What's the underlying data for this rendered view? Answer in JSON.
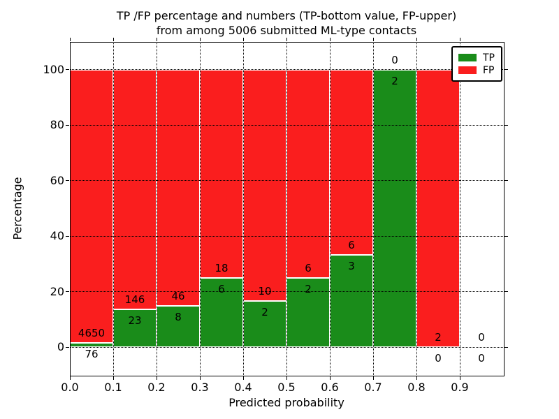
{
  "chart_data": {
    "type": "bar",
    "stacked": true,
    "title_line1": "TP /FP percentage and numbers (TP-bottom value, FP-upper)",
    "title_line2": "from among 5006 submitted ML-type contacts",
    "xlabel": "Predicted probability",
    "ylabel": "Percentage",
    "xlim": [
      0.0,
      1.0
    ],
    "ylim": [
      -10,
      110
    ],
    "xticks": [
      "0.0",
      "0.1",
      "0.2",
      "0.3",
      "0.4",
      "0.5",
      "0.6",
      "0.7",
      "0.8",
      "0.9"
    ],
    "yticks": [
      0,
      20,
      40,
      60,
      80,
      100
    ],
    "grid": "dotted",
    "colors": {
      "tp": "#1a8c1a",
      "fp": "#fa1e1e"
    },
    "legend": {
      "position": "upper-right",
      "entries": [
        {
          "label": "TP",
          "color": "#1a8c1a"
        },
        {
          "label": "FP",
          "color": "#fa1e1e"
        }
      ]
    },
    "bins": [
      {
        "range": [
          0.0,
          0.1
        ],
        "tp": 76,
        "fp": 4650,
        "tp_pct": 1.61,
        "fp_pct": 98.39,
        "show_bar": true
      },
      {
        "range": [
          0.1,
          0.2
        ],
        "tp": 23,
        "fp": 146,
        "tp_pct": 13.61,
        "fp_pct": 86.39,
        "show_bar": true
      },
      {
        "range": [
          0.2,
          0.3
        ],
        "tp": 8,
        "fp": 46,
        "tp_pct": 14.81,
        "fp_pct": 85.19,
        "show_bar": true
      },
      {
        "range": [
          0.3,
          0.4
        ],
        "tp": 6,
        "fp": 18,
        "tp_pct": 25.0,
        "fp_pct": 75.0,
        "show_bar": true
      },
      {
        "range": [
          0.4,
          0.5
        ],
        "tp": 2,
        "fp": 10,
        "tp_pct": 16.67,
        "fp_pct": 83.33,
        "show_bar": true
      },
      {
        "range": [
          0.5,
          0.6
        ],
        "tp": 2,
        "fp": 6,
        "tp_pct": 25.0,
        "fp_pct": 75.0,
        "show_bar": true
      },
      {
        "range": [
          0.6,
          0.7
        ],
        "tp": 3,
        "fp": 6,
        "tp_pct": 33.33,
        "fp_pct": 66.67,
        "show_bar": true
      },
      {
        "range": [
          0.7,
          0.8
        ],
        "tp": 2,
        "fp": 0,
        "tp_pct": 100.0,
        "fp_pct": 0.0,
        "show_bar": true
      },
      {
        "range": [
          0.8,
          0.9
        ],
        "tp": 0,
        "fp": 2,
        "tp_pct": 0.0,
        "fp_pct": 100.0,
        "show_bar": true
      },
      {
        "range": [
          0.9,
          1.0
        ],
        "tp": 0,
        "fp": 0,
        "tp_pct": 0.0,
        "fp_pct": 0.0,
        "show_bar": false
      }
    ]
  }
}
